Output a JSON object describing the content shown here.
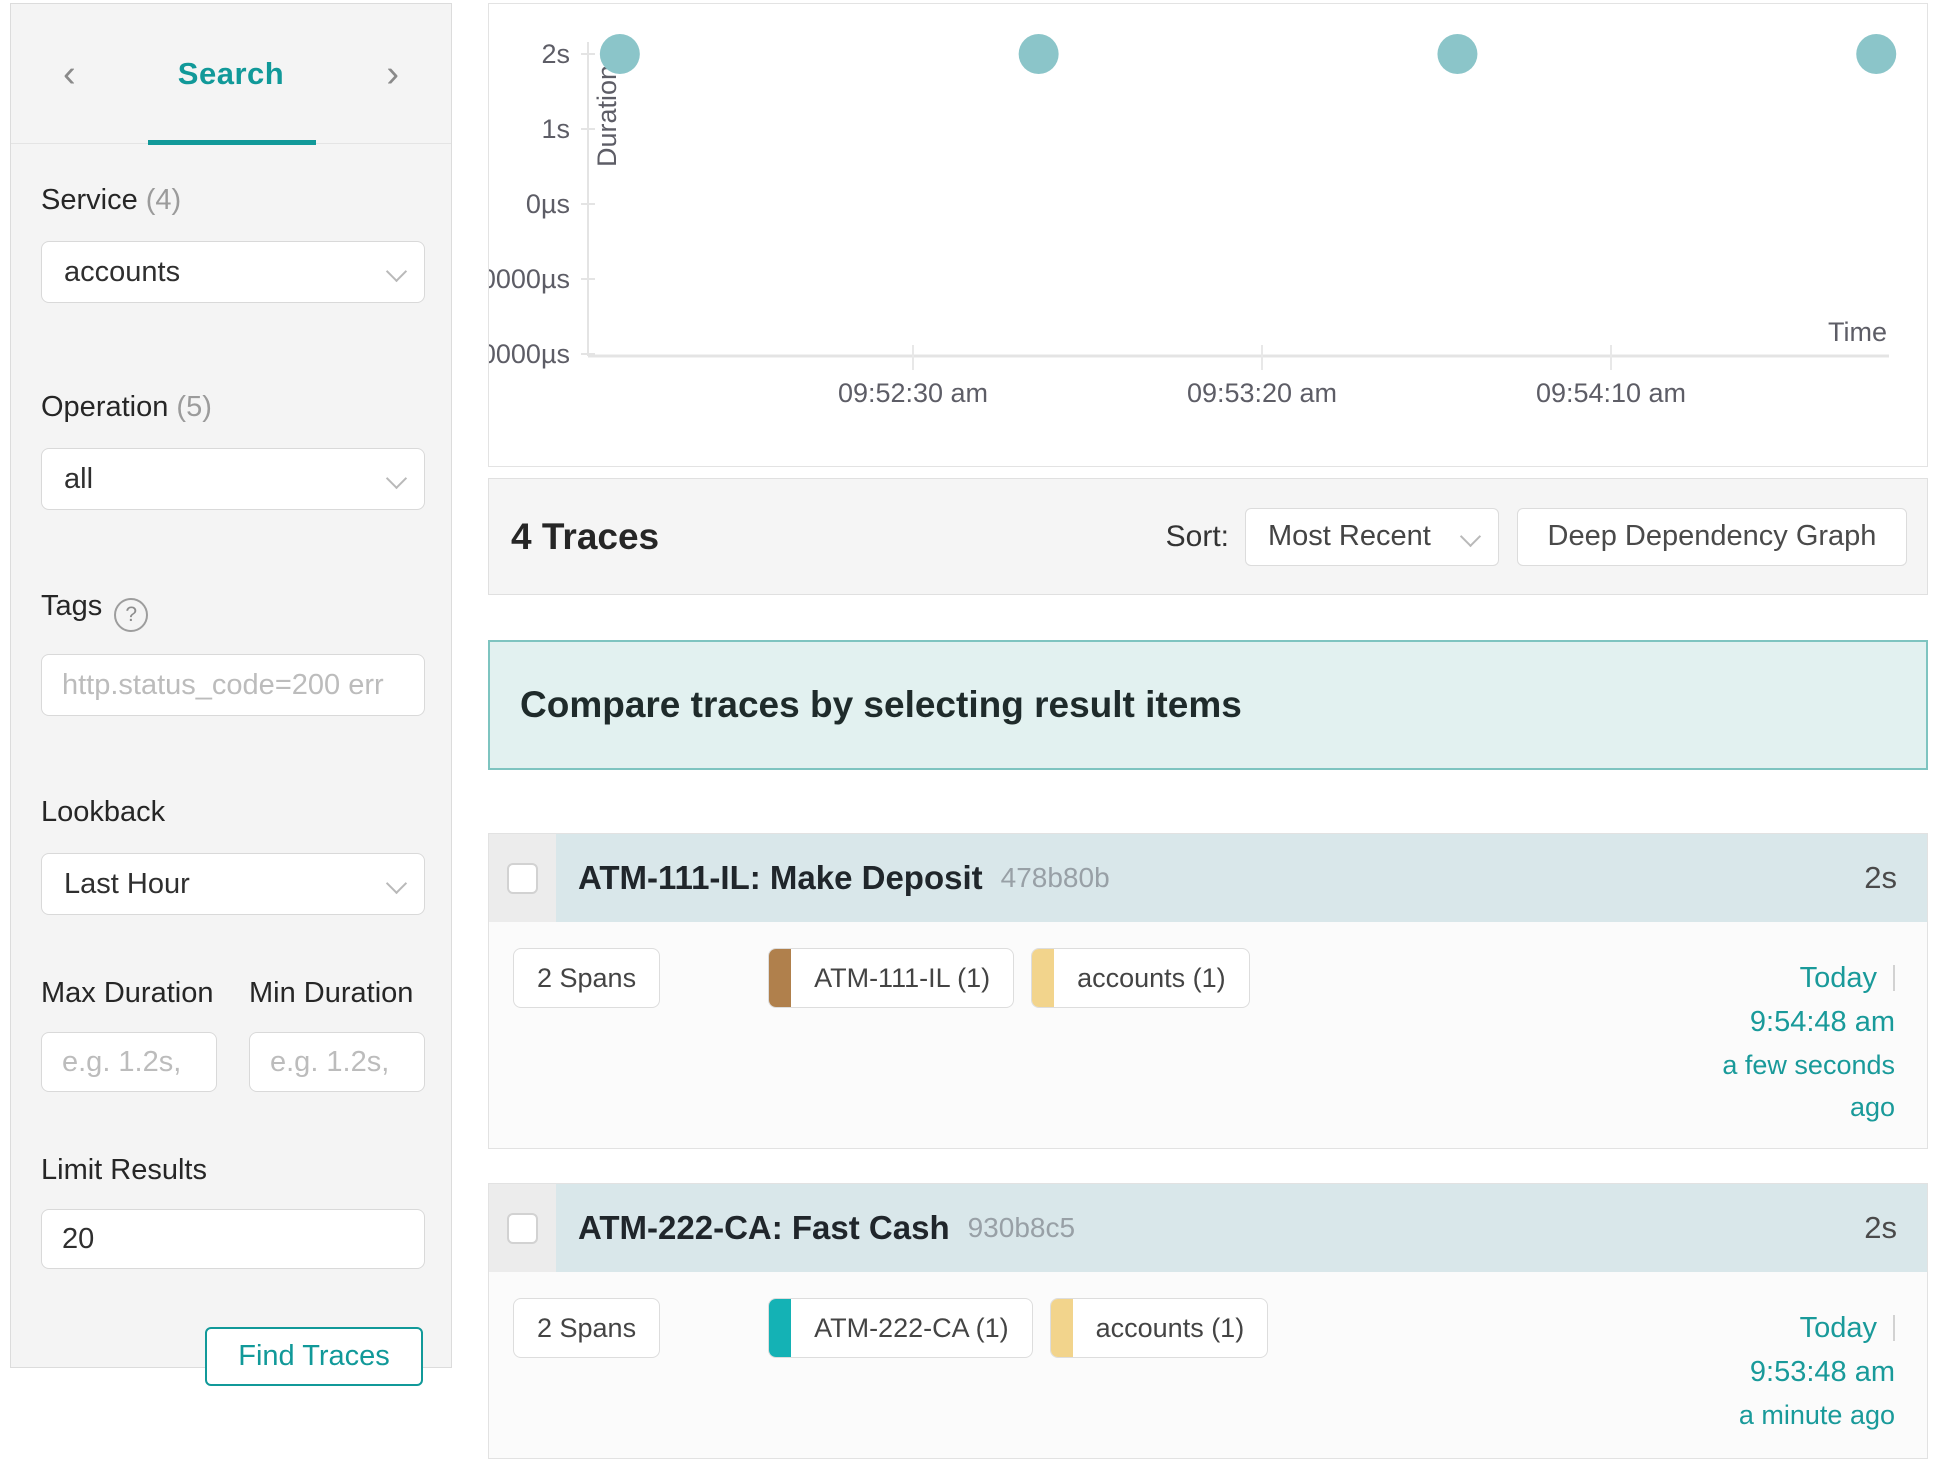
{
  "sidebar": {
    "prev_icon": "‹",
    "next_icon": "›",
    "tab": "Search",
    "service": {
      "label": "Service",
      "count": "(4)",
      "value": "accounts"
    },
    "operation": {
      "label": "Operation",
      "count": "(5)",
      "value": "all"
    },
    "tags": {
      "label": "Tags",
      "help_glyph": "?",
      "placeholder": "http.status_code=200 err"
    },
    "lookback": {
      "label": "Lookback",
      "value": "Last Hour"
    },
    "max_duration": {
      "label": "Max Duration",
      "placeholder": "e.g. 1.2s,"
    },
    "min_duration": {
      "label": "Min Duration",
      "placeholder": "e.g. 1.2s,"
    },
    "limit": {
      "label": "Limit Results",
      "value": "20"
    },
    "find_button": "Find Traces"
  },
  "chart_data": {
    "type": "scatter",
    "xlabel": "Time",
    "ylabel": "Duration",
    "y_ticks": [
      "2s",
      "1s",
      "0µs",
      "0000µs",
      "0000µs"
    ],
    "x_ticks": [
      "09:52:30 am",
      "09:53:20 am",
      "09:54:10 am"
    ],
    "legend": "none",
    "grid": "ticks-only",
    "dot_color": "#8bc5c9",
    "points": [
      {
        "time": "09:51:48 am",
        "duration": "2s"
      },
      {
        "time": "09:52:48 am",
        "duration": "2s"
      },
      {
        "time": "09:53:48 am",
        "duration": "2s"
      },
      {
        "time": "09:54:48 am",
        "duration": "2s"
      }
    ]
  },
  "results_bar": {
    "count": "4 Traces",
    "sort_label": "Sort:",
    "sort_value": "Most Recent",
    "ddg_button": "Deep Dependency Graph"
  },
  "banner": {
    "text": "Compare traces by selecting result items"
  },
  "traces": [
    {
      "title": "ATM-111-IL: Make Deposit",
      "trace_id": "478b80b",
      "duration": "2s",
      "spans": "2 Spans",
      "tags": [
        {
          "label": "ATM-111-IL (1)",
          "color": "#b0804c"
        },
        {
          "label": "accounts (1)",
          "color": "#f2d48c"
        }
      ],
      "date": "Today",
      "time": "9:54:48 am",
      "relative": "a few seconds ago"
    },
    {
      "title": "ATM-222-CA: Fast Cash",
      "trace_id": "930b8c5",
      "duration": "2s",
      "spans": "2 Spans",
      "tags": [
        {
          "label": "ATM-222-CA (1)",
          "color": "#14b2b5"
        },
        {
          "label": "accounts (1)",
          "color": "#f2d48c"
        }
      ],
      "date": "Today",
      "time": "9:53:48 am",
      "relative": "a minute ago"
    }
  ]
}
